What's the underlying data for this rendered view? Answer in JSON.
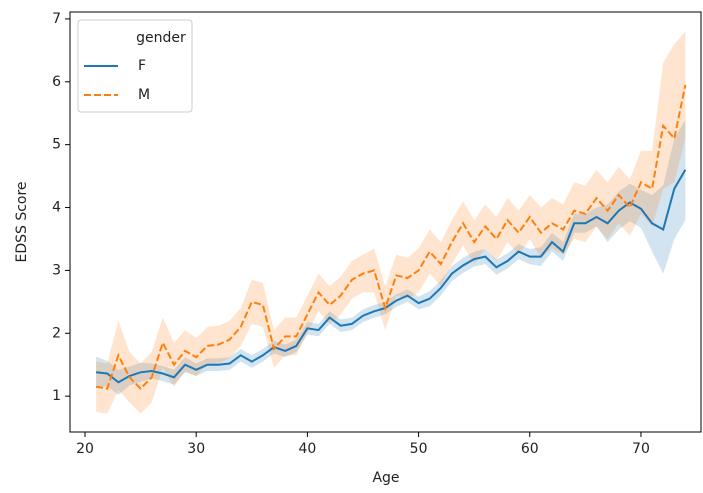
{
  "chart_data": {
    "type": "line",
    "xlabel": "Age",
    "ylabel": "EDSS Score",
    "x": [
      21,
      22,
      23,
      24,
      25,
      26,
      27,
      28,
      29,
      30,
      31,
      32,
      33,
      34,
      35,
      36,
      37,
      38,
      39,
      40,
      41,
      42,
      43,
      44,
      45,
      46,
      47,
      48,
      49,
      50,
      51,
      52,
      53,
      54,
      55,
      56,
      57,
      58,
      59,
      60,
      61,
      62,
      63,
      64,
      65,
      66,
      67,
      68,
      69,
      70,
      71,
      72,
      73,
      74
    ],
    "series": [
      {
        "name": "F",
        "color": "#1f77b4",
        "linestyle": "solid",
        "values": [
          1.38,
          1.36,
          1.22,
          1.32,
          1.38,
          1.4,
          1.36,
          1.3,
          1.5,
          1.42,
          1.5,
          1.5,
          1.52,
          1.65,
          1.55,
          1.65,
          1.78,
          1.72,
          1.8,
          2.08,
          2.05,
          2.25,
          2.12,
          2.15,
          2.28,
          2.35,
          2.4,
          2.52,
          2.6,
          2.48,
          2.55,
          2.72,
          2.95,
          3.08,
          3.18,
          3.22,
          3.05,
          3.15,
          3.3,
          3.22,
          3.22,
          3.45,
          3.3,
          3.75,
          3.75,
          3.85,
          3.75,
          3.95,
          4.08,
          3.98,
          3.75,
          3.65,
          4.3,
          4.6
        ],
        "ci_lower": [
          1.13,
          1.16,
          1.02,
          1.17,
          1.23,
          1.28,
          1.24,
          1.18,
          1.38,
          1.32,
          1.4,
          1.4,
          1.42,
          1.55,
          1.45,
          1.55,
          1.68,
          1.62,
          1.7,
          1.98,
          1.95,
          2.15,
          2.02,
          2.05,
          2.18,
          2.25,
          2.3,
          2.42,
          2.5,
          2.38,
          2.43,
          2.6,
          2.83,
          2.96,
          3.06,
          3.1,
          2.93,
          3.03,
          3.18,
          3.1,
          3.07,
          3.3,
          3.15,
          3.6,
          3.6,
          3.7,
          3.45,
          3.65,
          3.78,
          3.68,
          3.3,
          2.95,
          3.5,
          3.8
        ],
        "ci_upper": [
          1.63,
          1.56,
          1.42,
          1.47,
          1.53,
          1.52,
          1.48,
          1.42,
          1.62,
          1.52,
          1.6,
          1.6,
          1.62,
          1.75,
          1.65,
          1.75,
          1.88,
          1.82,
          1.9,
          2.18,
          2.15,
          2.35,
          2.22,
          2.25,
          2.38,
          2.45,
          2.5,
          2.62,
          2.7,
          2.58,
          2.67,
          2.84,
          3.07,
          3.2,
          3.3,
          3.34,
          3.17,
          3.27,
          3.42,
          3.34,
          3.37,
          3.6,
          3.45,
          3.9,
          3.9,
          4.0,
          4.05,
          4.25,
          4.38,
          4.28,
          4.2,
          4.35,
          5.1,
          5.4
        ]
      },
      {
        "name": "M",
        "color": "#ff7f0e",
        "linestyle": "dashed",
        "values": [
          1.15,
          1.12,
          1.65,
          1.3,
          1.12,
          1.3,
          1.85,
          1.5,
          1.72,
          1.62,
          1.8,
          1.82,
          1.9,
          2.1,
          2.5,
          2.45,
          1.75,
          1.95,
          1.95,
          2.3,
          2.65,
          2.45,
          2.6,
          2.85,
          2.95,
          3.0,
          2.4,
          2.92,
          2.88,
          3.0,
          3.3,
          3.1,
          3.45,
          3.75,
          3.45,
          3.7,
          3.5,
          3.8,
          3.6,
          3.85,
          3.6,
          3.75,
          3.65,
          3.95,
          3.9,
          4.15,
          3.95,
          4.2,
          4.0,
          4.4,
          4.3,
          5.3,
          5.1,
          5.95
        ],
        "ci_lower": [
          0.75,
          0.72,
          1.1,
          0.9,
          0.72,
          0.9,
          1.45,
          1.15,
          1.4,
          1.32,
          1.5,
          1.52,
          1.6,
          1.8,
          2.15,
          2.1,
          1.45,
          1.65,
          1.65,
          2.0,
          2.35,
          2.15,
          2.3,
          2.55,
          2.65,
          2.65,
          2.05,
          2.6,
          2.55,
          2.65,
          2.95,
          2.75,
          3.1,
          3.4,
          3.1,
          3.35,
          3.15,
          3.45,
          3.25,
          3.5,
          3.2,
          3.35,
          3.25,
          3.5,
          3.45,
          3.7,
          3.5,
          3.75,
          3.55,
          3.9,
          3.7,
          4.3,
          4.4,
          5.1
        ],
        "ci_upper": [
          1.55,
          1.52,
          2.2,
          1.7,
          1.52,
          1.7,
          2.25,
          1.85,
          2.05,
          1.92,
          2.1,
          2.12,
          2.2,
          2.4,
          2.85,
          2.8,
          2.05,
          2.25,
          2.25,
          2.6,
          2.95,
          2.75,
          2.9,
          3.15,
          3.25,
          3.35,
          2.75,
          3.25,
          3.2,
          3.35,
          3.65,
          3.45,
          3.8,
          4.1,
          3.8,
          4.05,
          3.85,
          4.15,
          3.95,
          4.2,
          4.0,
          4.15,
          4.05,
          4.4,
          4.35,
          4.6,
          4.4,
          4.65,
          4.45,
          4.9,
          4.9,
          6.3,
          6.6,
          6.8
        ]
      }
    ],
    "legend_title": "gender",
    "legend": "upper left",
    "xlim": [
      18.65,
      75.4
    ],
    "xticks": [
      20,
      30,
      40,
      50,
      60,
      70
    ],
    "ylim": [
      0.43,
      7.11
    ],
    "yticks": [
      1,
      2,
      3,
      4,
      5,
      6,
      7
    ]
  }
}
